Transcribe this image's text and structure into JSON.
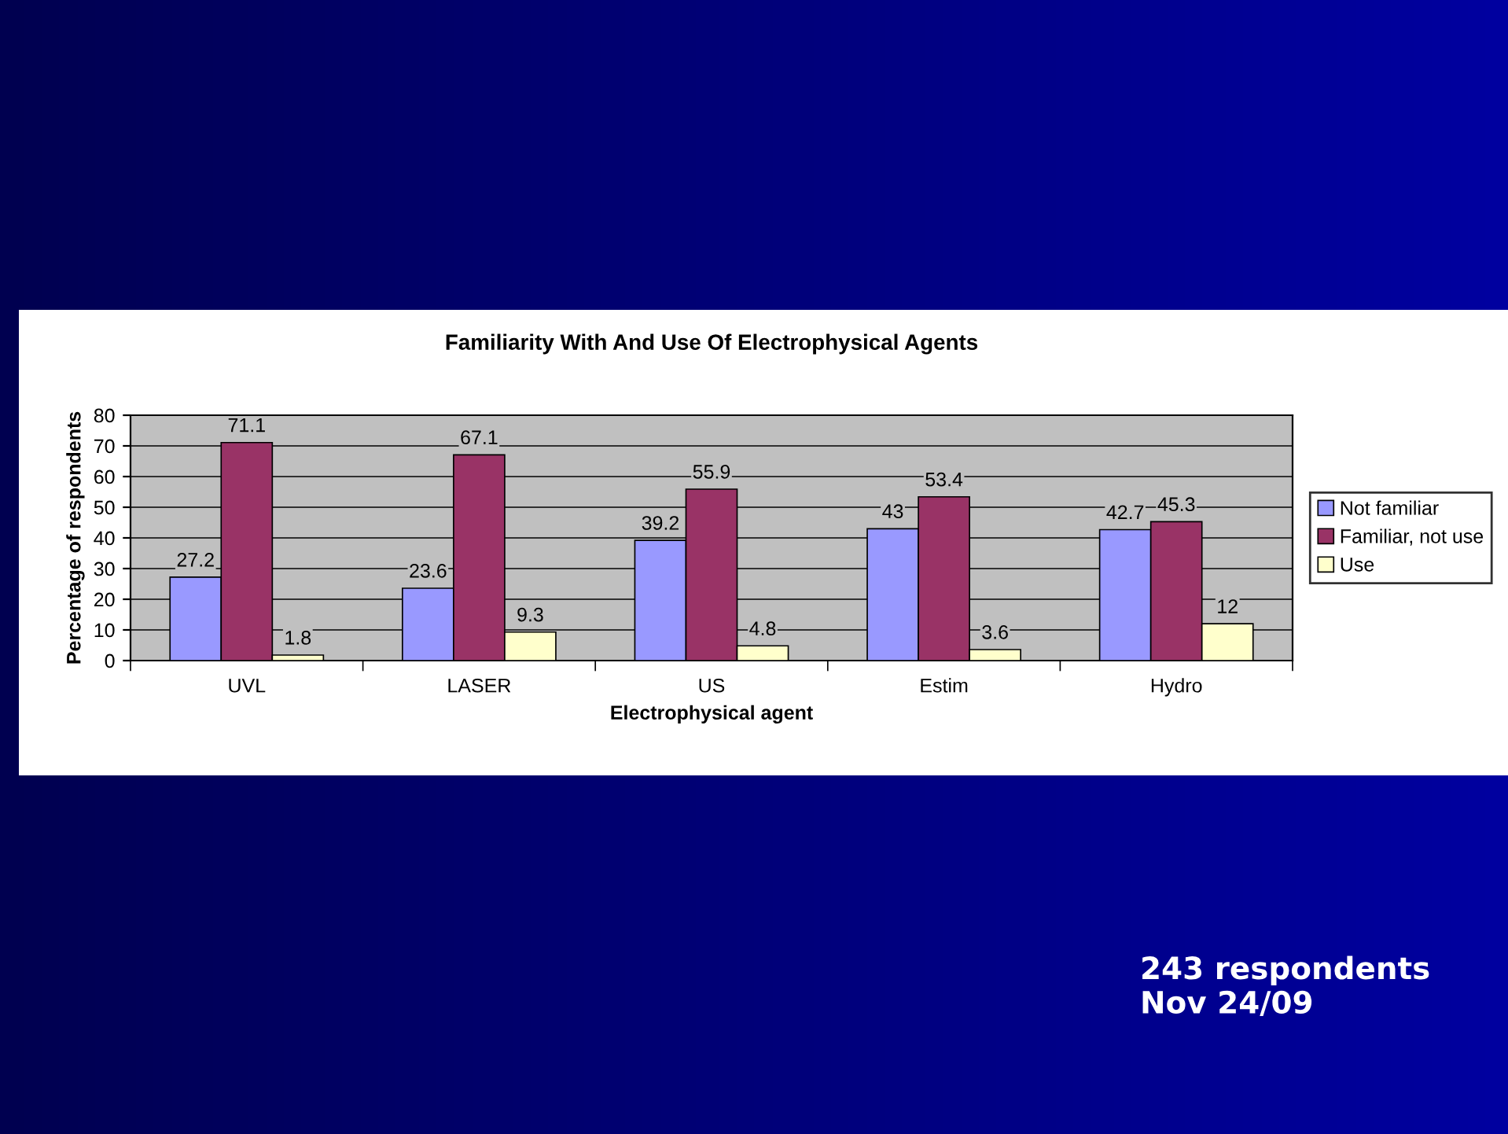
{
  "chart_data": {
    "type": "bar",
    "title": "Familiarity With And Use Of Electrophysical Agents",
    "xlabel": "Electrophysical agent",
    "ylabel": "Percentage of respondents",
    "categories": [
      "UVL",
      "LASER",
      "US",
      "Estim",
      "Hydro"
    ],
    "series": [
      {
        "name": "Not familiar",
        "color": "#9999ff",
        "values": [
          27.2,
          23.6,
          39.2,
          43,
          42.7
        ]
      },
      {
        "name": "Familiar, not use",
        "color": "#993366",
        "values": [
          71.1,
          67.1,
          55.9,
          53.4,
          45.3
        ]
      },
      {
        "name": "Use",
        "color": "#ffffcc",
        "values": [
          1.8,
          9.3,
          4.8,
          3.6,
          12
        ]
      }
    ],
    "ylim": [
      0,
      80
    ],
    "yticks": [
      0,
      10,
      20,
      30,
      40,
      50,
      60,
      70,
      80
    ],
    "grid": "y",
    "legend": "right",
    "data_labels": true,
    "annotations": [
      "243 respondents\nNov 24/09"
    ]
  }
}
